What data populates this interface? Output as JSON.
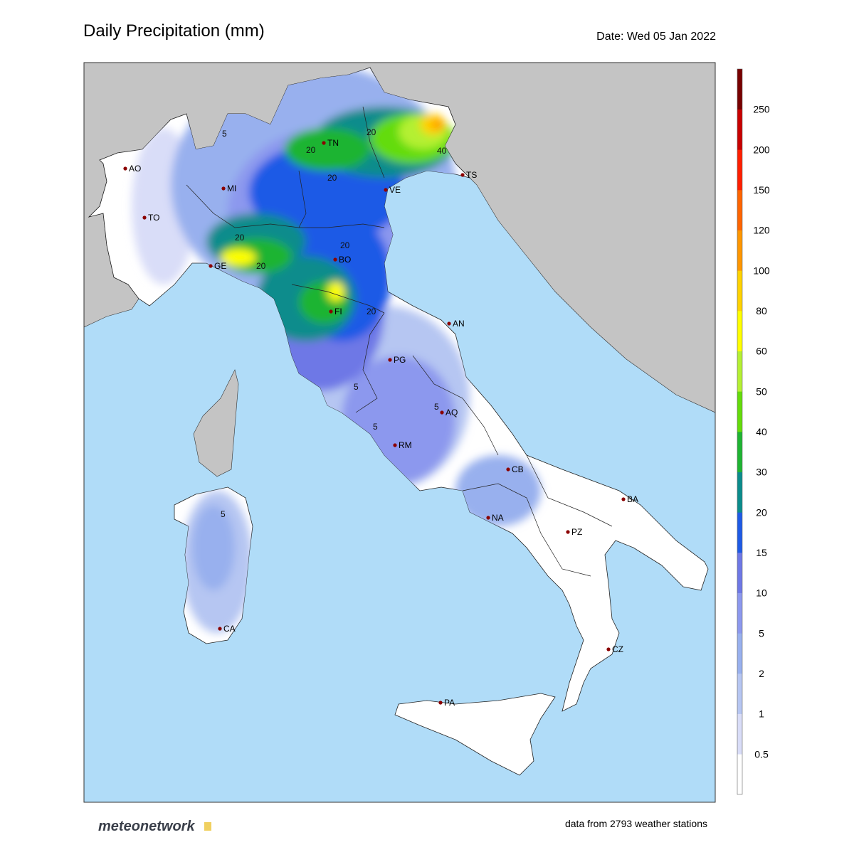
{
  "header": {
    "title": "Daily Precipitation (mm)",
    "date": "Date: Wed 05 Jan 2022"
  },
  "colorbar": {
    "ticks": [
      "0.5",
      "1",
      "2",
      "5",
      "10",
      "15",
      "20",
      "30",
      "40",
      "50",
      "60",
      "80",
      "100",
      "120",
      "150",
      "200",
      "250"
    ],
    "colors": [
      "#ffffff",
      "#d9ddf8",
      "#b6c6f2",
      "#98b0ee",
      "#8c98ee",
      "#6e78e6",
      "#1e5ae6",
      "#0a8c8c",
      "#1eb432",
      "#64dc0a",
      "#b4f032",
      "#ffff00",
      "#ffd200",
      "#ff9600",
      "#ff6400",
      "#ff1e00",
      "#c80000",
      "#780000"
    ]
  },
  "cities": [
    "AO",
    "TO",
    "MI",
    "TN",
    "VE",
    "TS",
    "GE",
    "BO",
    "FI",
    "AN",
    "PG",
    "AQ",
    "RM",
    "CB",
    "BA",
    "NA",
    "PZ",
    "CZ",
    "CA",
    "PA"
  ],
  "contour_labels": [
    "5",
    "20",
    "20",
    "20",
    "40",
    "20",
    "20",
    "20",
    "20",
    "5",
    "5",
    "5",
    "5"
  ],
  "footer": {
    "logo": "meteonetwork",
    "stations": "data from 2793 weather stations"
  }
}
